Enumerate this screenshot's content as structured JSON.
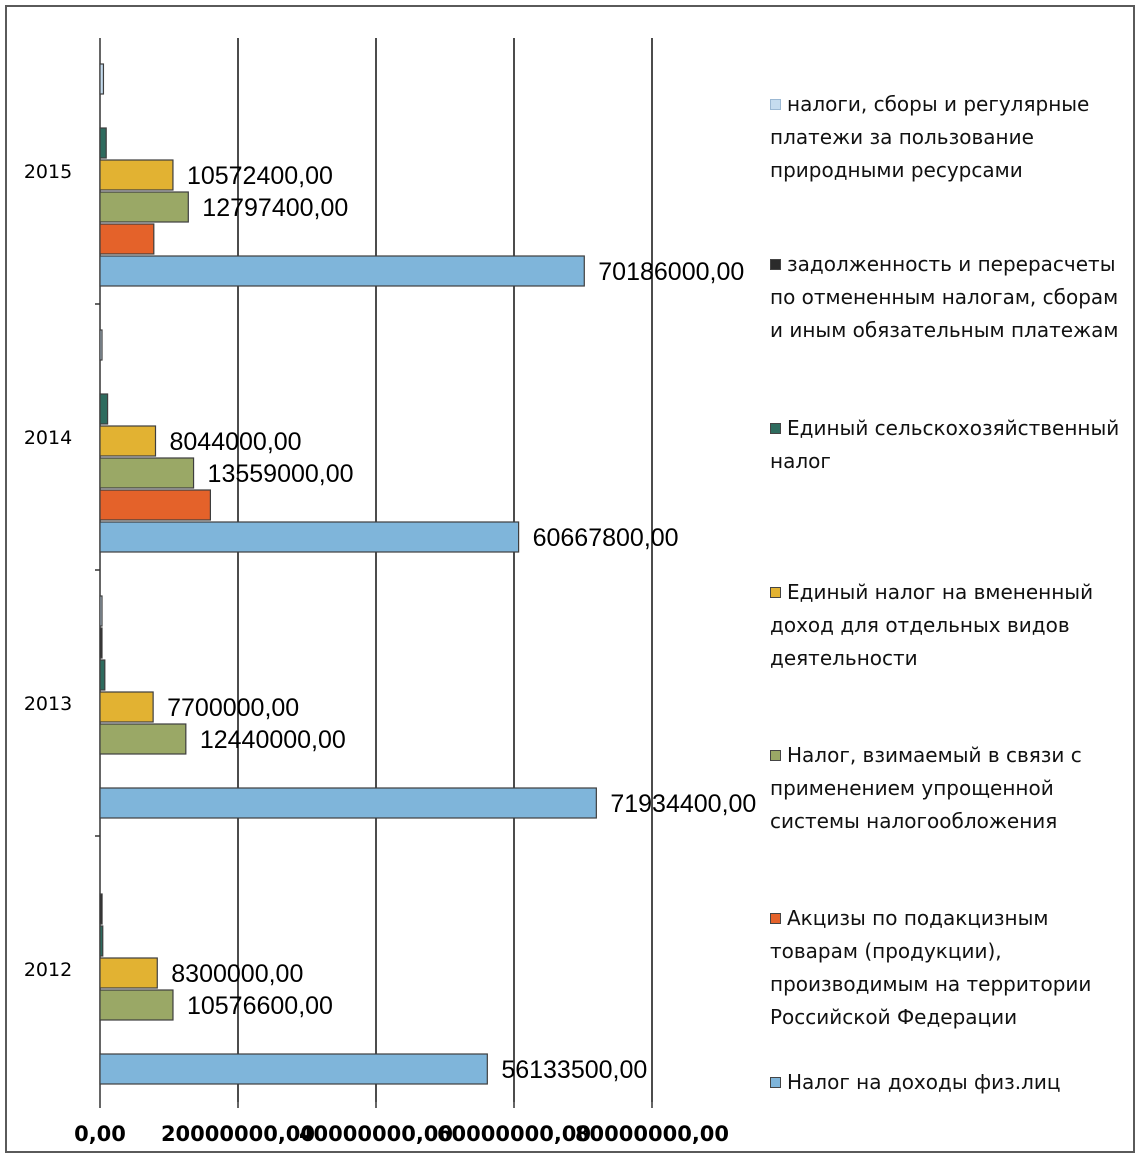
{
  "chart_data": {
    "type": "bar",
    "orientation": "horizontal",
    "categories": [
      "2012",
      "2013",
      "2014",
      "2015"
    ],
    "xlim": [
      0,
      80000000
    ],
    "x_ticks": [
      "0,00",
      "20000000,00",
      "40000000,00",
      "60000000,00",
      "80000000,00"
    ],
    "grid": true,
    "legend_position": "right",
    "series": [
      {
        "name": "налоги, сборы и регулярные платежи за пользование природными ресурсами",
        "color": "#c5dcef",
        "values": [
          0,
          150000,
          200000,
          500000
        ],
        "labels": [
          "",
          "",
          "",
          ""
        ]
      },
      {
        "name": "задолженность и перерасчеты по отмененным налогам, сборам и иным обязательным платежам",
        "color": "#2b2b2b",
        "values": [
          300000,
          250000,
          0,
          0
        ],
        "labels": [
          "",
          "",
          "",
          ""
        ]
      },
      {
        "name": "Единый сельскохозяйственный налог",
        "color": "#2e6b5e",
        "values": [
          400000,
          700000,
          1100000,
          900000
        ],
        "labels": [
          "",
          "",
          "",
          ""
        ]
      },
      {
        "name": "Единый налог на вмененный доход для отдельных видов деятельности",
        "color": "#e2b232",
        "values": [
          8300000,
          7700000,
          8044000,
          10572400
        ],
        "labels": [
          "8300000,00",
          "7700000,00",
          "8044000,00",
          "10572400,00"
        ]
      },
      {
        "name": "Налог, взимаемый в связи с применением упрощенной системы налогообложения",
        "color": "#9aa866",
        "values": [
          10576600,
          12440000,
          13559000,
          12797400
        ],
        "labels": [
          "10576600,00",
          "12440000,00",
          "13559000,00",
          "12797400,00"
        ]
      },
      {
        "name": "Акцизы по подакцизным товарам (продукции), производимым на территории Российской Федерации",
        "color": "#e4622a",
        "values": [
          0,
          0,
          16000000,
          7800000
        ],
        "labels": [
          "",
          "",
          "",
          ""
        ]
      },
      {
        "name": "Налог на доходы физ.лиц",
        "color": "#7fb5da",
        "values": [
          56133500,
          71934400,
          60667800,
          70186000
        ],
        "labels": [
          "56133500,00",
          "71934400,00",
          "60667800,00",
          "70186000,00"
        ]
      }
    ]
  }
}
